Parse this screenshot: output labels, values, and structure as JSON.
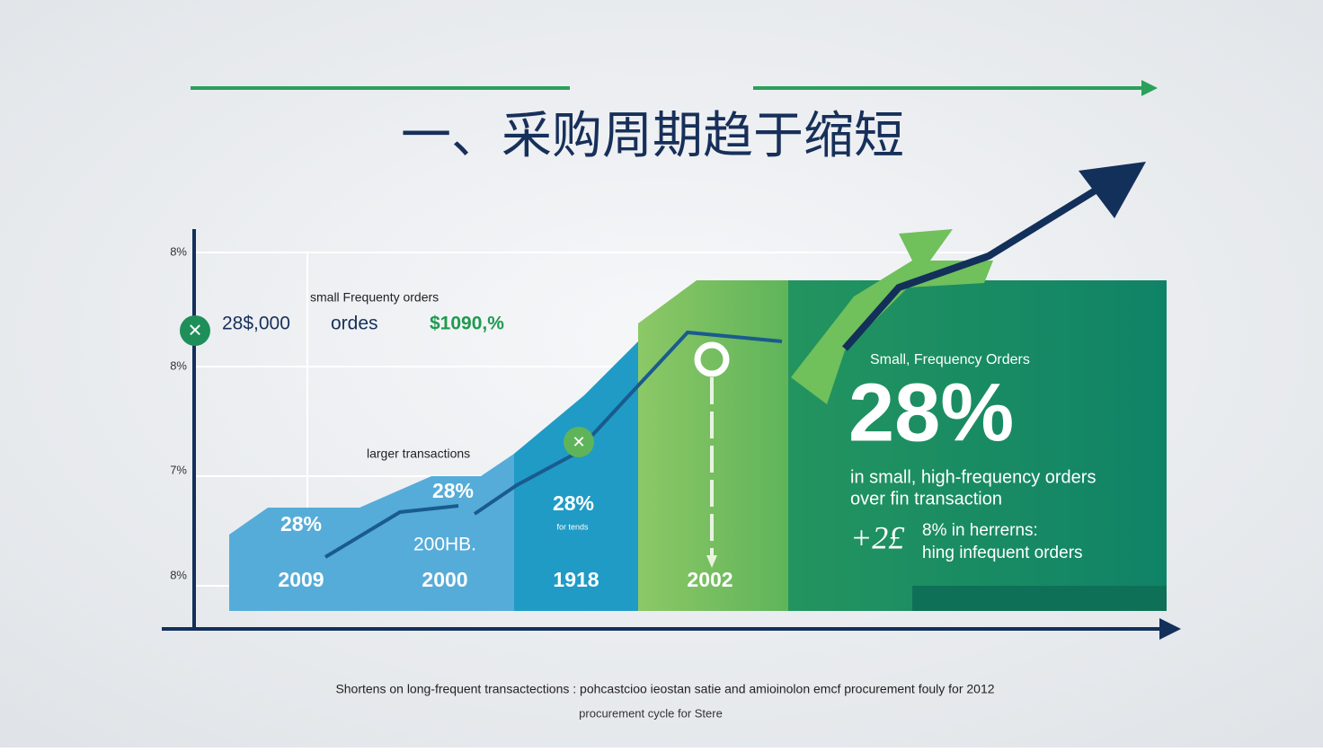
{
  "title": "一、采购周期趋于缩短",
  "axis_labels": [
    "8%",
    "8%",
    "7%",
    "8%"
  ],
  "callout": {
    "heading": "small Frequenty orders",
    "figure": "28$,000",
    "unit": "ordes",
    "amount": "$1090,%"
  },
  "larger_label": "larger transactions",
  "bands": [
    {
      "value": "28%",
      "year": "2009"
    },
    {
      "value": "28%",
      "note": "200HB.",
      "year": "2000"
    },
    {
      "value": "28%",
      "note": "for tends",
      "year": "1918"
    },
    {
      "year": "2002"
    }
  ],
  "panel": {
    "heading": "Small, Frequency Orders",
    "big": "28%",
    "line1": "in small, high-frequency orders",
    "line2": "over fin transaction",
    "mark": "+2£",
    "line3": "8% in herrerns:",
    "line4": "hing infequent orders"
  },
  "footer": [
    "Shortens on long-frequent transactections : pohcastcioo ieostan satie and amioinolon emcf procurement fouly for 2012",
    "procurement cycle for Stere"
  ]
}
